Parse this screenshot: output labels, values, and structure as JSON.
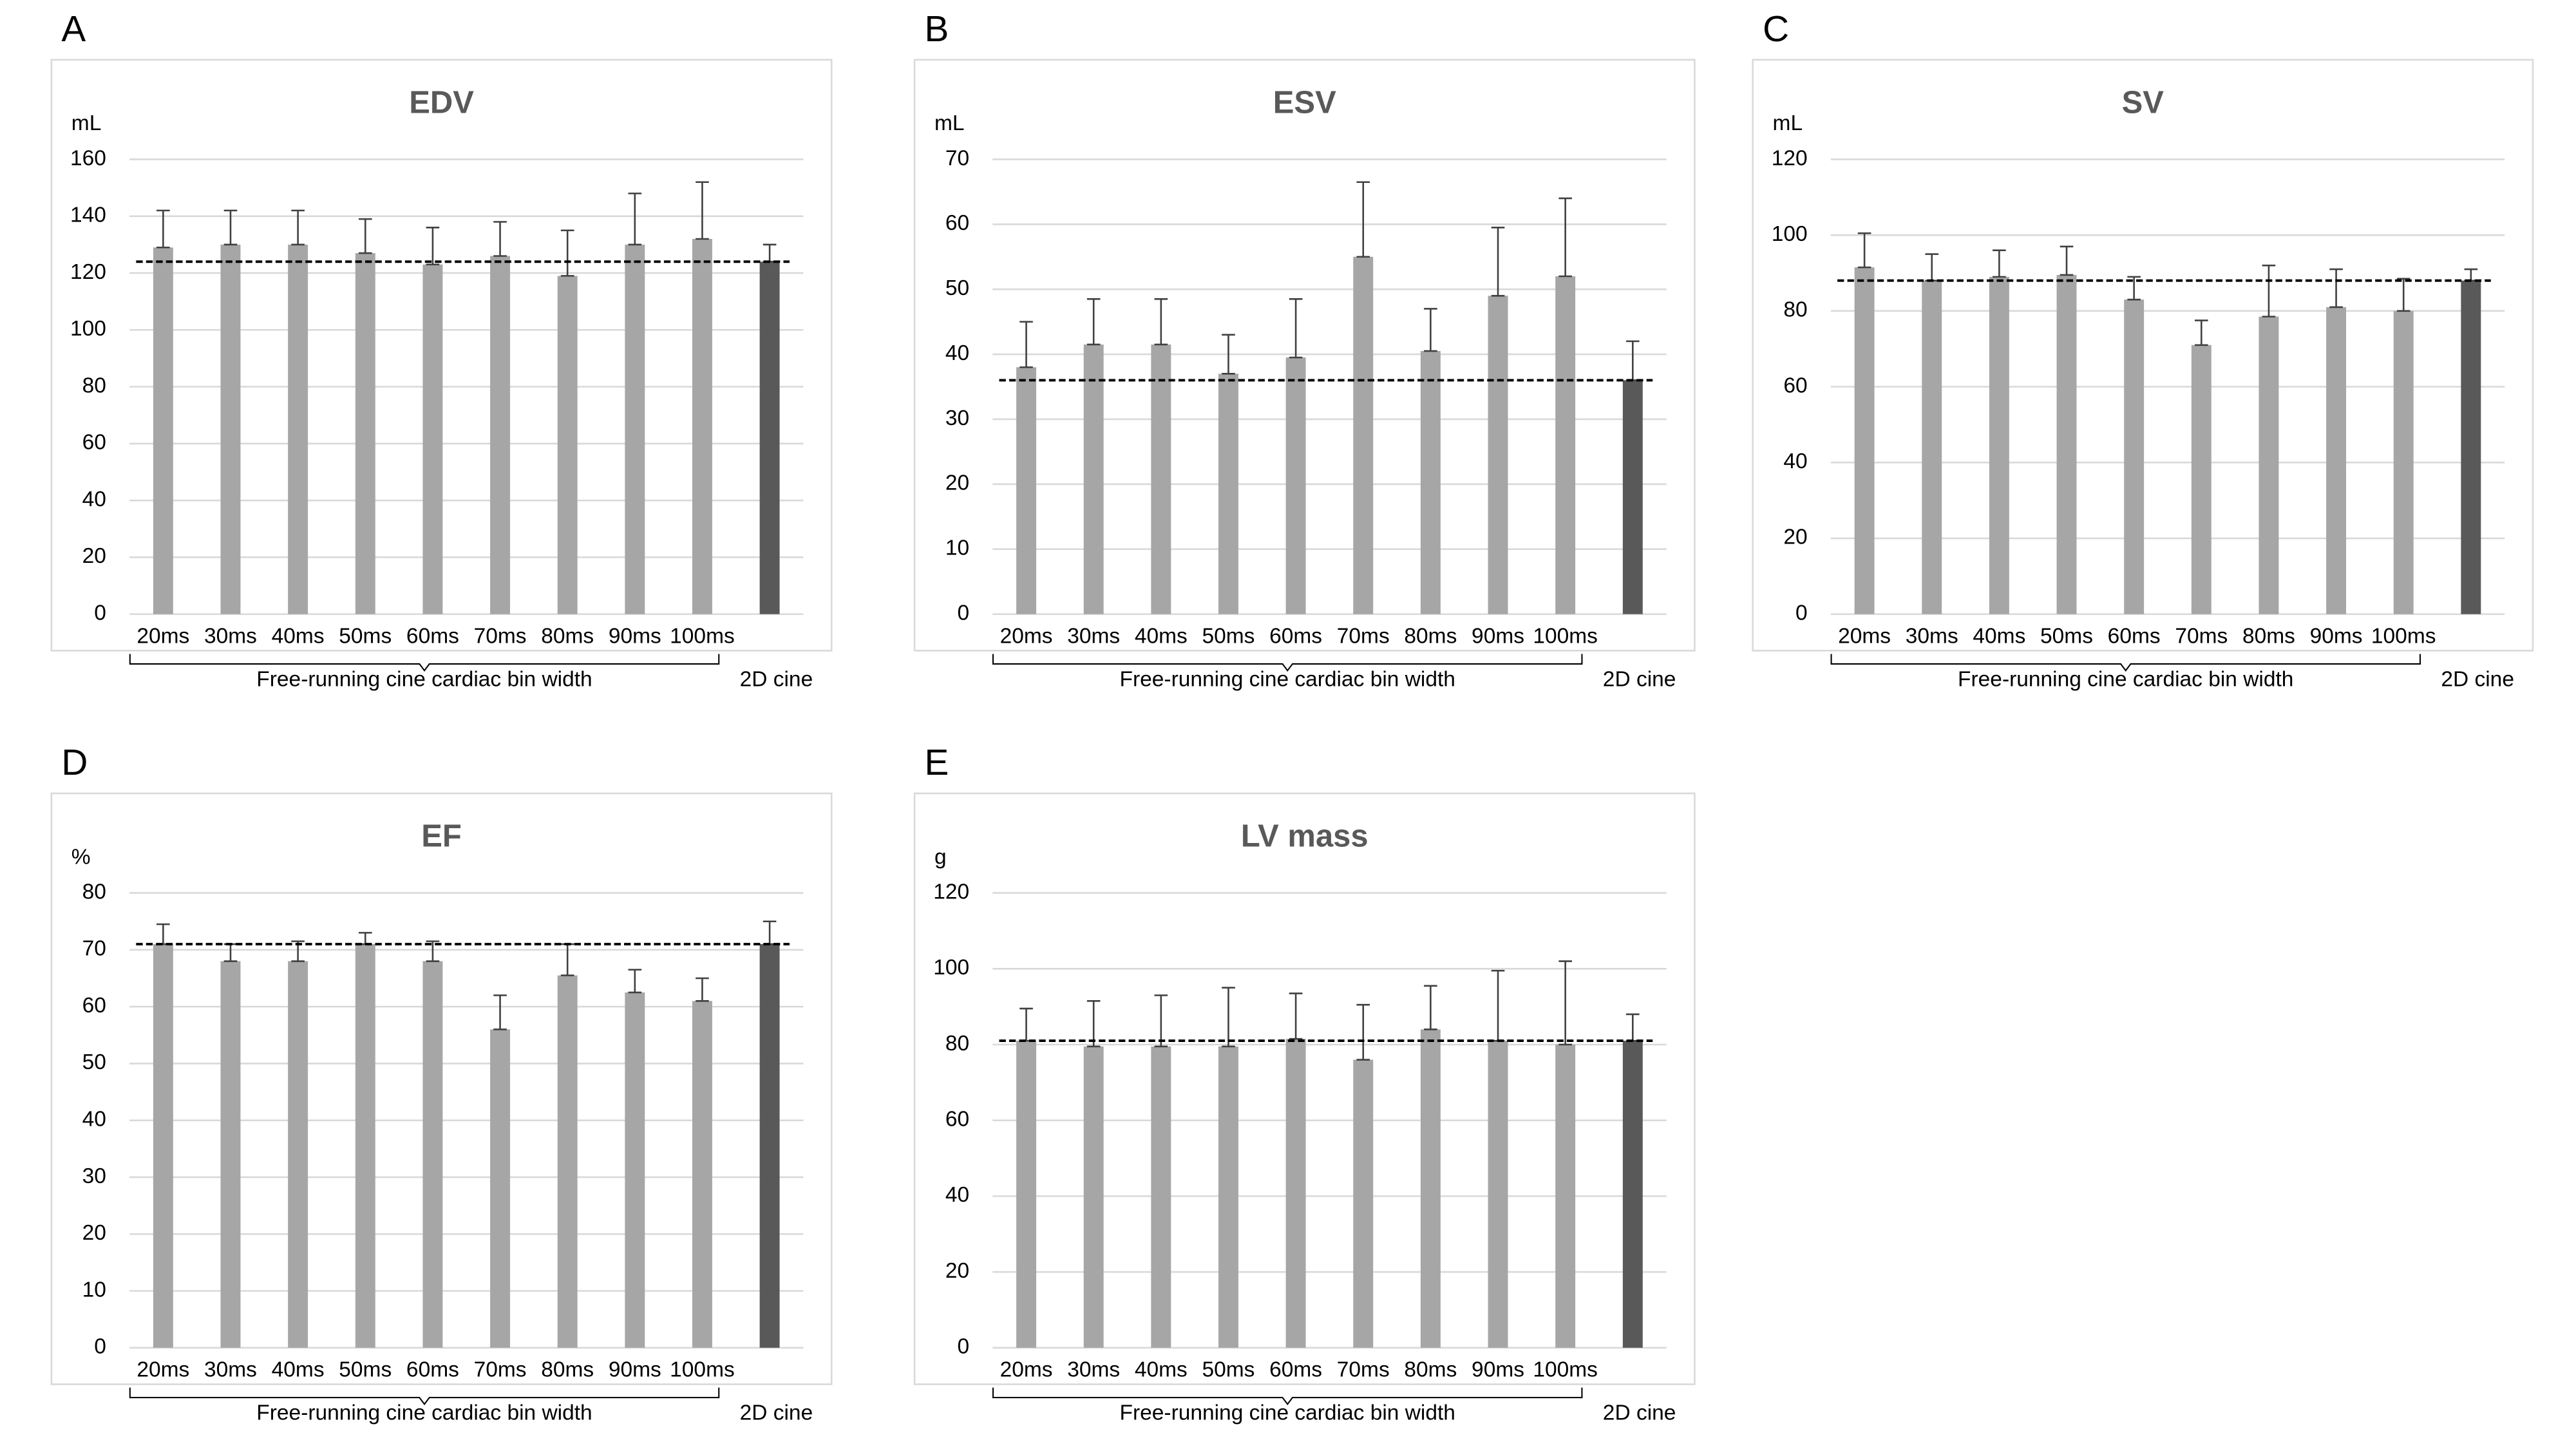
{
  "chart_data": [
    {
      "type": "bar",
      "panel": "A",
      "title": "EDV",
      "y_unit": "mL",
      "categories": [
        "20ms",
        "30ms",
        "40ms",
        "50ms",
        "60ms",
        "70ms",
        "80ms",
        "90ms",
        "100ms",
        "2D cine"
      ],
      "group_label": "Free-running cine cardiac bin width",
      "values": [
        129,
        130,
        130,
        127,
        123,
        126,
        119,
        130,
        132,
        124
      ],
      "errors": [
        13,
        12,
        12,
        12,
        13,
        12,
        16,
        18,
        20,
        6
      ],
      "colors": [
        "#a6a6a6",
        "#a6a6a6",
        "#a6a6a6",
        "#a6a6a6",
        "#a6a6a6",
        "#a6a6a6",
        "#a6a6a6",
        "#a6a6a6",
        "#a6a6a6",
        "#595959"
      ],
      "ylim": [
        0,
        160
      ],
      "yticks": [
        0,
        20,
        40,
        60,
        80,
        100,
        120,
        140,
        160
      ],
      "grid": true
    },
    {
      "type": "bar",
      "panel": "B",
      "title": "ESV",
      "y_unit": "mL",
      "categories": [
        "20ms",
        "30ms",
        "40ms",
        "50ms",
        "60ms",
        "70ms",
        "80ms",
        "90ms",
        "100ms",
        "2D cine"
      ],
      "group_label": "Free-running cine cardiac bin width",
      "values": [
        38,
        41.5,
        41.5,
        37,
        39.5,
        55,
        40.5,
        49,
        52,
        36
      ],
      "errors": [
        7,
        7,
        7,
        6,
        9,
        11.5,
        6.5,
        10.5,
        12,
        6
      ],
      "colors": [
        "#a6a6a6",
        "#a6a6a6",
        "#a6a6a6",
        "#a6a6a6",
        "#a6a6a6",
        "#a6a6a6",
        "#a6a6a6",
        "#a6a6a6",
        "#a6a6a6",
        "#595959"
      ],
      "ylim": [
        0,
        70
      ],
      "yticks": [
        0,
        10,
        20,
        30,
        40,
        50,
        60,
        70
      ],
      "grid": true
    },
    {
      "type": "bar",
      "panel": "C",
      "title": "SV",
      "y_unit": "mL",
      "categories": [
        "20ms",
        "30ms",
        "40ms",
        "50ms",
        "60ms",
        "70ms",
        "80ms",
        "90ms",
        "100ms",
        "2D cine"
      ],
      "group_label": "Free-running cine cardiac bin width",
      "values": [
        91.5,
        88,
        89,
        89.5,
        83,
        71,
        78.5,
        81,
        80,
        88
      ],
      "errors": [
        9,
        7,
        7,
        7.5,
        6,
        6.5,
        13.5,
        10,
        8.5,
        3
      ],
      "colors": [
        "#a6a6a6",
        "#a6a6a6",
        "#a6a6a6",
        "#a6a6a6",
        "#a6a6a6",
        "#a6a6a6",
        "#a6a6a6",
        "#a6a6a6",
        "#a6a6a6",
        "#595959"
      ],
      "ylim": [
        0,
        120
      ],
      "yticks": [
        0,
        20,
        40,
        60,
        80,
        100,
        120
      ],
      "grid": true
    },
    {
      "type": "bar",
      "panel": "D",
      "title": "EF",
      "y_unit": "%",
      "categories": [
        "20ms",
        "30ms",
        "40ms",
        "50ms",
        "60ms",
        "70ms",
        "80ms",
        "90ms",
        "100ms",
        "2D cine"
      ],
      "group_label": "Free-running cine cardiac bin width",
      "values": [
        71,
        68,
        68,
        71,
        68,
        56,
        65.5,
        62.5,
        61,
        71
      ],
      "errors": [
        3.5,
        3,
        3.5,
        2,
        3.5,
        6,
        5.5,
        4,
        4,
        4
      ],
      "colors": [
        "#a6a6a6",
        "#a6a6a6",
        "#a6a6a6",
        "#a6a6a6",
        "#a6a6a6",
        "#a6a6a6",
        "#a6a6a6",
        "#a6a6a6",
        "#a6a6a6",
        "#595959"
      ],
      "ylim": [
        0,
        80
      ],
      "yticks": [
        0,
        10,
        20,
        30,
        40,
        50,
        60,
        70,
        80
      ],
      "grid": true
    },
    {
      "type": "bar",
      "panel": "E",
      "title": "LV mass",
      "y_unit": "g",
      "categories": [
        "20ms",
        "30ms",
        "40ms",
        "50ms",
        "60ms",
        "70ms",
        "80ms",
        "90ms",
        "100ms",
        "2D cine"
      ],
      "group_label": "Free-running cine cardiac bin width",
      "values": [
        81,
        79.5,
        79.5,
        79.5,
        81.5,
        76,
        84,
        81,
        80,
        81
      ],
      "errors": [
        8.5,
        12,
        13.5,
        15.5,
        12,
        14.5,
        11.5,
        18.5,
        22,
        7
      ],
      "colors": [
        "#a6a6a6",
        "#a6a6a6",
        "#a6a6a6",
        "#a6a6a6",
        "#a6a6a6",
        "#a6a6a6",
        "#a6a6a6",
        "#a6a6a6",
        "#a6a6a6",
        "#595959"
      ],
      "ylim": [
        0,
        120
      ],
      "yticks": [
        0,
        20,
        40,
        60,
        80,
        100,
        120
      ],
      "grid": true
    }
  ]
}
